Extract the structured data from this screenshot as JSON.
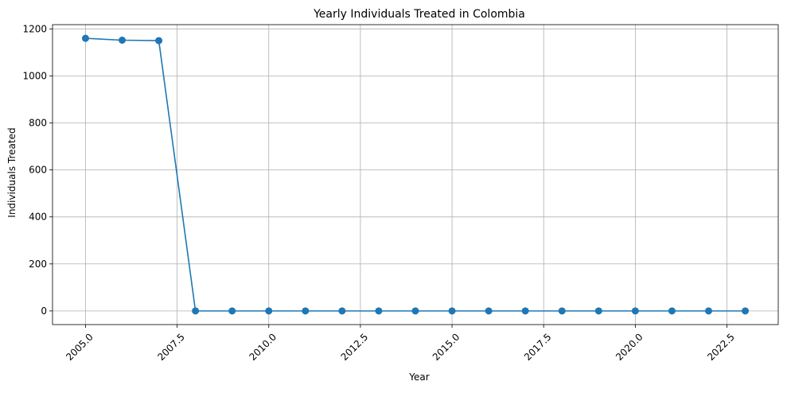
{
  "chart_data": {
    "type": "line",
    "title": "Yearly Individuals Treated in Colombia",
    "xlabel": "Year",
    "ylabel": "Individuals Treated",
    "x": [
      2005,
      2006,
      2007,
      2008,
      2009,
      2010,
      2011,
      2012,
      2013,
      2014,
      2015,
      2016,
      2017,
      2018,
      2019,
      2020,
      2021,
      2022,
      2023
    ],
    "series": [
      {
        "values": [
          1160,
          1152,
          1150,
          0,
          0,
          0,
          0,
          0,
          0,
          0,
          0,
          0,
          0,
          0,
          0,
          0,
          0,
          0,
          0
        ],
        "color": "#1f77b4",
        "marker": "circle"
      }
    ],
    "xlim": [
      2004.1,
      2023.9
    ],
    "ylim": [
      -58,
      1218
    ],
    "xticks": [
      2005.0,
      2007.5,
      2010.0,
      2012.5,
      2015.0,
      2017.5,
      2020.0,
      2022.5
    ],
    "xtick_labels": [
      "2005.0",
      "2007.5",
      "2010.0",
      "2012.5",
      "2015.0",
      "2017.5",
      "2020.0",
      "2022.5"
    ],
    "yticks": [
      0,
      200,
      400,
      600,
      800,
      1000,
      1200
    ],
    "ytick_labels": [
      "0",
      "200",
      "400",
      "600",
      "800",
      "1000",
      "1200"
    ],
    "grid": true,
    "xtick_rotation": 45
  }
}
